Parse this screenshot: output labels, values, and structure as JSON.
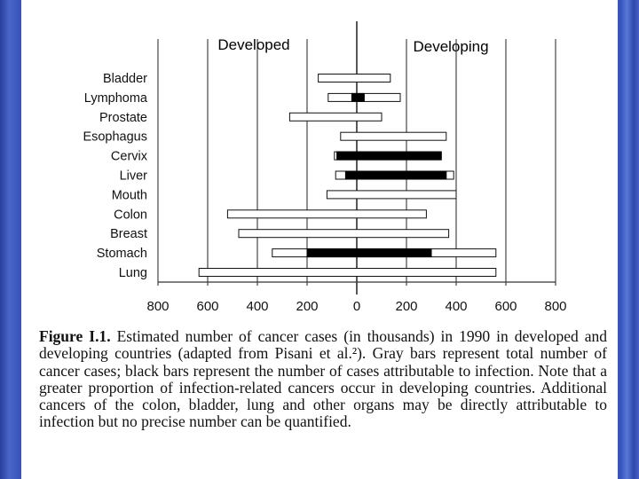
{
  "chart_data": {
    "type": "bar",
    "orientation": "horizontal",
    "layout": "back-to-back",
    "left_label": "Developed",
    "right_label": "Developing",
    "categories": [
      "Bladder",
      "Lymphoma",
      "Prostate",
      "Esophagus",
      "Cervix",
      "Liver",
      "Mouth",
      "Colon",
      "Breast",
      "Stomach",
      "Lung"
    ],
    "series": [
      {
        "name": "Total cancer cases (Developed)",
        "color": "#ffffff",
        "values": [
          155,
          115,
          270,
          65,
          90,
          85,
          120,
          520,
          475,
          340,
          635
        ]
      },
      {
        "name": "Total cancer cases (Developing)",
        "color": "#ffffff",
        "values": [
          135,
          175,
          100,
          360,
          340,
          390,
          400,
          280,
          370,
          560,
          560
        ]
      },
      {
        "name": "Attributable to infection (Developed)",
        "color": "#000000",
        "values": [
          0,
          20,
          0,
          0,
          80,
          45,
          0,
          0,
          0,
          200,
          0
        ]
      },
      {
        "name": "Attributable to infection (Developing)",
        "color": "#000000",
        "values": [
          0,
          30,
          0,
          0,
          340,
          360,
          0,
          0,
          0,
          300,
          0
        ]
      }
    ],
    "xlim": [
      -800,
      800
    ],
    "tick_labels": [
      "800",
      "600",
      "400",
      "200",
      "0",
      "200",
      "400",
      "600",
      "800"
    ],
    "xlabel": "",
    "ylabel": "",
    "grid": true
  },
  "caption": {
    "label": "Figure I.1.",
    "text": "Estimated number of cancer cases (in thousands) in 1990 in developed and developing countries (adapted from Pisani et al.²). Gray bars represent total number of cancer cases; black bars represent the number of cases attributable to infection. Note that a greater proportion of infection-related cancers occur in developing countries. Additional cancers of the colon, bladder, lung and other organs may be directly attributable to infection but no precise number can be quantified."
  }
}
